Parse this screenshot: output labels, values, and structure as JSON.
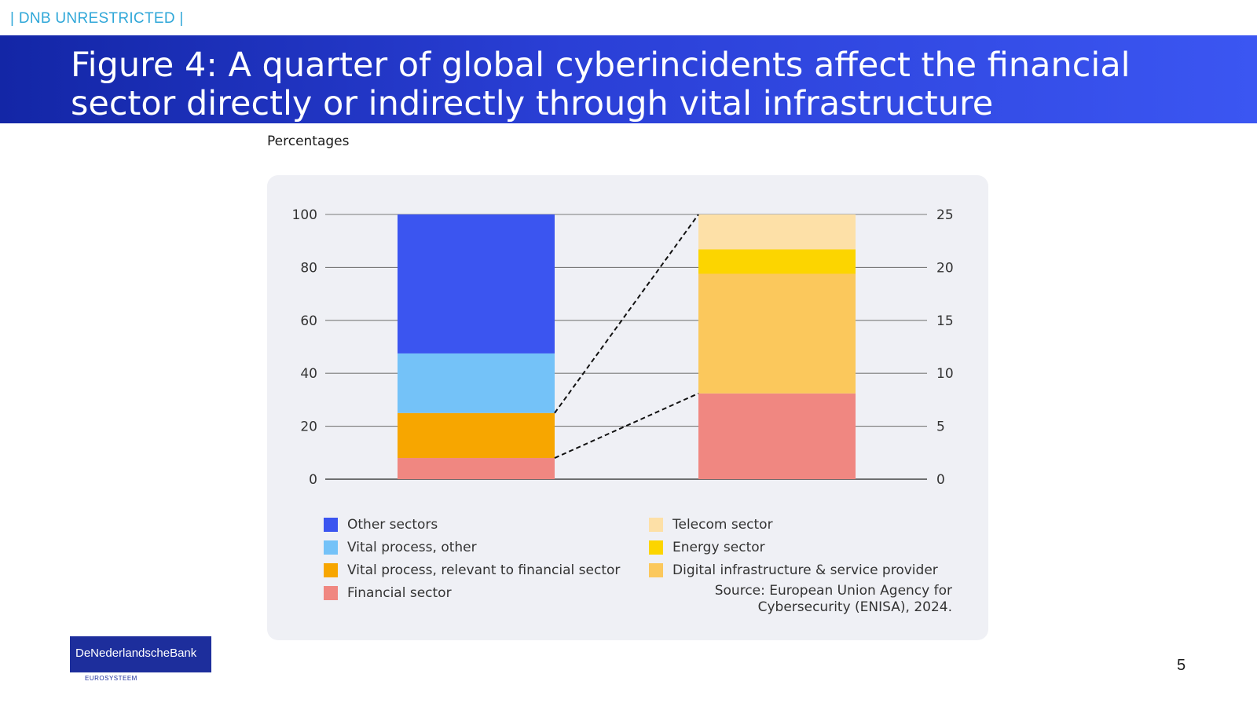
{
  "header": {
    "classification": "| DNB UNRESTRICTED |",
    "title": "Figure 4: A quarter of global cyberincidents affect the financial sector directly or indirectly through vital infrastructure"
  },
  "footer": {
    "logo_text": "DeNederlandscheBank",
    "logo_subtext": "EUROSYSTEEM",
    "page_number": "5"
  },
  "chart_data": {
    "type": "bar",
    "subtitle": "Percentages",
    "source": "Source: European Union Agency for Cybersecurity (ENISA), 2024.",
    "grid": true,
    "left_axis": {
      "ylim": [
        0,
        100
      ],
      "ticks": [
        "0",
        "20",
        "40",
        "60",
        "80",
        "100"
      ]
    },
    "right_axis": {
      "ylim": [
        0,
        25
      ],
      "ticks": [
        "0",
        "5",
        "10",
        "15",
        "20",
        "25"
      ]
    },
    "bars": [
      {
        "axis": "left",
        "segments": [
          {
            "name": "Financial sector",
            "value": 8,
            "color": "#f08781"
          },
          {
            "name": "Vital process, relevant to financial sector",
            "value": 17,
            "color": "#f7a600"
          },
          {
            "name": "Vital process, other",
            "value": 22.5,
            "color": "#74c2f8"
          },
          {
            "name": "Other sectors",
            "value": 52.5,
            "color": "#3b55f0"
          }
        ]
      },
      {
        "axis": "right",
        "segments": [
          {
            "name": "Financial sector",
            "value": 8.1,
            "color": "#f08781"
          },
          {
            "name": "Digital infrastructure & service provider",
            "value": 11.3,
            "color": "#fbc85c"
          },
          {
            "name": "Energy sector",
            "value": 2.3,
            "color": "#fcd500"
          },
          {
            "name": "Telecom sector",
            "value": 3.3,
            "color": "#fde0a7"
          }
        ]
      }
    ],
    "legend": {
      "left_column": [
        {
          "label": "Other sectors",
          "color": "#3b55f0"
        },
        {
          "label": "Vital process, other",
          "color": "#74c2f8"
        },
        {
          "label": "Vital process, relevant to financial sector",
          "color": "#f7a600"
        },
        {
          "label": "Financial sector",
          "color": "#f08781"
        }
      ],
      "right_column": [
        {
          "label": "Telecom sector",
          "color": "#fde0a7"
        },
        {
          "label": "Energy sector",
          "color": "#fcd500"
        },
        {
          "label": "Digital infrastructure & service provider",
          "color": "#fbc85c"
        }
      ]
    }
  }
}
